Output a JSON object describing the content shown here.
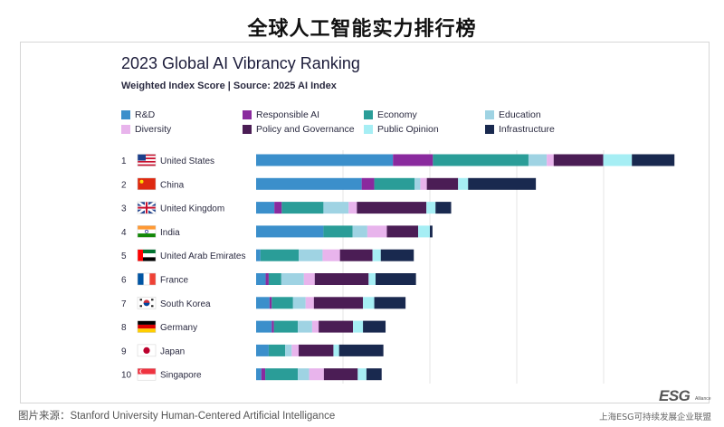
{
  "page": {
    "title": "全球人工智能实力排行榜",
    "source": "图片来源：Stanford University Human-Centered Artificial Intelligance",
    "credit": "上海ESG可持续发展企业联盟",
    "logo_text": "ESG",
    "logo_sub": "Alliance"
  },
  "chart_data": {
    "type": "bar",
    "orientation": "horizontal",
    "stacked": true,
    "title": "2023 Global AI Vibrancy Ranking",
    "subtitle": "Weighted Index Score | Source: 2025 AI Index",
    "grid": true,
    "legend_position": "top",
    "categories": [
      "United States",
      "China",
      "United Kingdom",
      "India",
      "United Arab Emirates",
      "France",
      "South Korea",
      "Germany",
      "Japan",
      "Singapore"
    ],
    "ranks": [
      "1",
      "2",
      "3",
      "4",
      "5",
      "6",
      "7",
      "8",
      "9",
      "10"
    ],
    "flags": [
      "us",
      "cn",
      "gb",
      "in",
      "ae",
      "fr",
      "kr",
      "de",
      "jp",
      "sg"
    ],
    "series": [
      {
        "name": "R&D",
        "color": "#3b8fcb",
        "values": [
          31.5,
          24.3,
          4.2,
          15.5,
          1.0,
          2.2,
          3.1,
          3.6,
          2.9,
          1.2
        ]
      },
      {
        "name": "Responsible AI",
        "color": "#8a2a9e",
        "values": [
          9.2,
          2.9,
          1.7,
          0.0,
          0.0,
          0.7,
          0.5,
          0.5,
          0.0,
          0.9
        ]
      },
      {
        "name": "Economy",
        "color": "#2a9d98",
        "values": [
          22.0,
          9.3,
          9.6,
          6.7,
          8.8,
          2.9,
          4.9,
          5.5,
          3.8,
          7.5
        ]
      },
      {
        "name": "Education",
        "color": "#9fd3e3",
        "values": [
          4.2,
          1.3,
          5.8,
          3.4,
          5.5,
          5.2,
          2.9,
          3.3,
          1.5,
          2.6
        ]
      },
      {
        "name": "Diversity",
        "color": "#e8b4ec",
        "values": [
          1.6,
          1.5,
          1.9,
          4.5,
          4.0,
          2.5,
          1.9,
          1.5,
          1.6,
          3.4
        ]
      },
      {
        "name": "Policy and Governance",
        "color": "#4b1d55",
        "values": [
          11.4,
          7.2,
          16.0,
          7.2,
          7.5,
          12.4,
          11.3,
          7.9,
          8.0,
          7.8
        ]
      },
      {
        "name": "Public Opinion",
        "color": "#a6eef4",
        "values": [
          6.6,
          2.3,
          2.1,
          2.7,
          1.9,
          1.6,
          2.6,
          2.3,
          1.3,
          2.0
        ]
      },
      {
        "name": "Infrastructure",
        "color": "#19294f",
        "values": [
          9.8,
          15.6,
          3.6,
          0.6,
          7.6,
          9.3,
          7.2,
          5.2,
          10.2,
          3.5
        ]
      }
    ],
    "xlim": [
      0,
      100
    ]
  }
}
